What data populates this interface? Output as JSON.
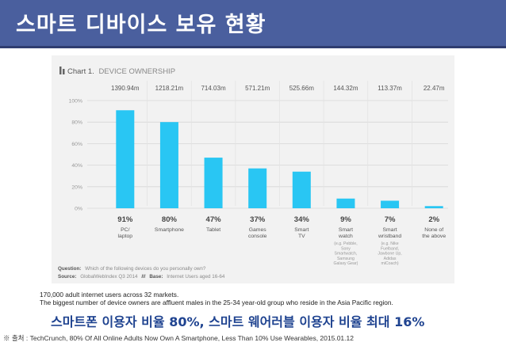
{
  "header": {
    "title": "스마트 디바이스 보유 현황"
  },
  "chart_data": {
    "type": "bar",
    "title_prefix": "Chart 1.",
    "title": "DEVICE OWNERSHIP",
    "categories": [
      "PC/\nlaptop",
      "Smartphone",
      "Tablet",
      "Games\nconsole",
      "Smart\nTV",
      "Smart\nwatch",
      "Smart\nwristband",
      "None of\nthe above"
    ],
    "category_notes": [
      "",
      "",
      "",
      "",
      "",
      "(e.g. Pebble,\nSony\nSmartwatch,\nSamsung\nGalaxy Gear)",
      "(e.g. Nike\nFuelband,\nJawbone Up,\nAdidas\nmiCoach)",
      ""
    ],
    "values": [
      91,
      80,
      47,
      37,
      34,
      9,
      7,
      2
    ],
    "value_labels": [
      "91%",
      "80%",
      "47%",
      "37%",
      "34%",
      "9%",
      "7%",
      "2%"
    ],
    "top_labels": [
      "1390.94m",
      "1218.21m",
      "714.03m",
      "571.21m",
      "525.66m",
      "144.32m",
      "113.37m",
      "22.47m"
    ],
    "yticks": [
      "100%",
      "80%",
      "60%",
      "40%",
      "20%",
      "0%"
    ],
    "ylim": [
      0,
      100
    ],
    "bar_color": "#29c6f3",
    "question_label": "Question:",
    "question_text": "Which of the following devices do you personally own?",
    "source_label": "Source:",
    "source_text": "GlobalWebIndex Q3 2014",
    "base_label": "Base:",
    "base_text": "Internet Users aged 16-64",
    "divider": "///"
  },
  "note": {
    "line1": "170,000 adult internet users across 32 markets.",
    "line2": "The biggest number of device owners are affluent males in the 25-34 year-old group who reside in the Asia Pacific region."
  },
  "headline": "스마트폰 이용자 비율 80%, 스마트 웨어러블 이용자 비율 최대 16%",
  "source": "※ 출처 : TechCrunch, 80% Of All Online Adults Now Own A Smartphone, Less Than 10% Use Wearables, 2015.01.12"
}
